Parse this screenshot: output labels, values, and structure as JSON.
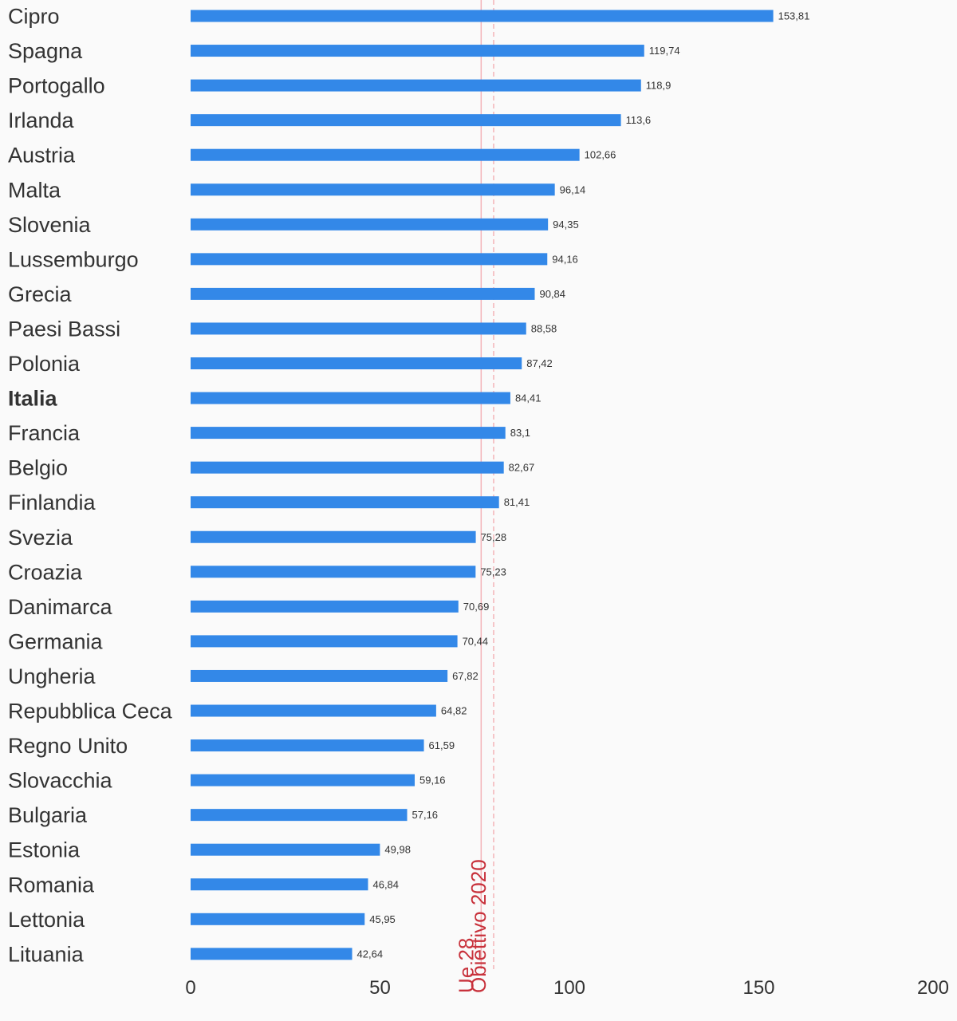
{
  "chart_data": {
    "type": "bar",
    "orientation": "horizontal",
    "categories": [
      "Cipro",
      "Spagna",
      "Portogallo",
      "Irlanda",
      "Austria",
      "Malta",
      "Slovenia",
      "Lussemburgo",
      "Grecia",
      "Paesi Bassi",
      "Polonia",
      "Italia",
      "Francia",
      "Belgio",
      "Finlandia",
      "Svezia",
      "Croazia",
      "Danimarca",
      "Germania",
      "Ungheria",
      "Repubblica Ceca",
      "Regno Unito",
      "Slovacchia",
      "Bulgaria",
      "Estonia",
      "Romania",
      "Lettonia",
      "Lituania"
    ],
    "values": [
      153.81,
      119.74,
      118.9,
      113.6,
      102.66,
      96.14,
      94.35,
      94.16,
      90.84,
      88.58,
      87.42,
      84.41,
      83.1,
      82.67,
      81.41,
      75.28,
      75.23,
      70.69,
      70.44,
      67.82,
      64.82,
      61.59,
      59.16,
      57.16,
      49.98,
      46.84,
      45.95,
      42.64
    ],
    "value_labels": [
      "153,81",
      "119,74",
      "118,9",
      "113,6",
      "102,66",
      "96,14",
      "94,35",
      "94,16",
      "90,84",
      "88,58",
      "87,42",
      "84,41",
      "83,1",
      "82,67",
      "81,41",
      "75,28",
      "75,23",
      "70,69",
      "70,44",
      "67,82",
      "64,82",
      "61,59",
      "59,16",
      "57,16",
      "49,98",
      "46,84",
      "45,95",
      "42,64"
    ],
    "highlight_category": "Italia",
    "xlim": [
      0,
      200
    ],
    "x_ticks": [
      0,
      50,
      100,
      150,
      200
    ],
    "x_tick_labels": [
      "0",
      "50",
      "100",
      "150",
      "200"
    ],
    "reference_lines": [
      {
        "label": "Ue 28",
        "value": 76.7,
        "style": "solid"
      },
      {
        "label": "Obiettivo 2020",
        "value": 80,
        "style": "dashed"
      }
    ],
    "grid": false,
    "legend": "none",
    "colors": {
      "bar": "#3388e8",
      "reference_line": "#f3b3b8",
      "reference_label": "#c8323c",
      "text": "#333333"
    }
  }
}
